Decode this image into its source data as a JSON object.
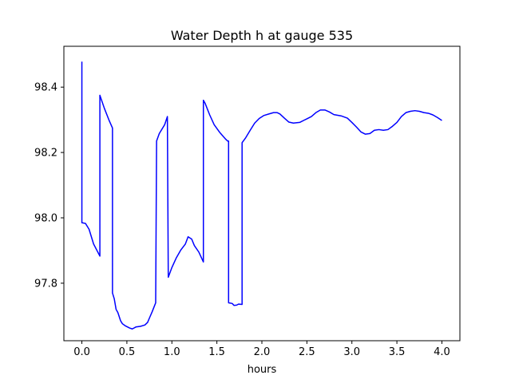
{
  "chart_data": {
    "type": "line",
    "title": "Water Depth h at gauge 535",
    "xlabel": "hours",
    "ylabel": "",
    "xlim": [
      -0.2,
      4.2
    ],
    "ylim": [
      97.624,
      98.525
    ],
    "xticks": [
      0.0,
      0.5,
      1.0,
      1.5,
      2.0,
      2.5,
      3.0,
      3.5,
      4.0
    ],
    "xtick_labels": [
      "0.0",
      "0.5",
      "1.0",
      "1.5",
      "2.0",
      "2.5",
      "3.0",
      "3.5",
      "4.0"
    ],
    "yticks": [
      97.8,
      98.0,
      98.2,
      98.4
    ],
    "ytick_labels": [
      "97.8",
      "98.0",
      "98.2",
      "98.4"
    ],
    "grid": false,
    "series": [
      {
        "color": "#0000ff",
        "x": [
          0.0,
          0.0,
          0.04,
          0.08,
          0.13,
          0.2,
          0.2,
          0.25,
          0.3,
          0.34,
          0.34,
          0.36,
          0.38,
          0.4,
          0.43,
          0.45,
          0.48,
          0.53,
          0.56,
          0.6,
          0.65,
          0.7,
          0.73,
          0.75,
          0.78,
          0.82,
          0.83,
          0.83,
          0.86,
          0.92,
          0.95,
          0.96,
          0.96,
          1.0,
          1.05,
          1.1,
          1.15,
          1.18,
          1.22,
          1.25,
          1.3,
          1.35,
          1.35,
          1.37,
          1.42,
          1.47,
          1.53,
          1.6,
          1.62,
          1.63,
          1.63,
          1.67,
          1.69,
          1.72,
          1.74,
          1.78,
          1.78,
          1.82,
          1.87,
          1.92,
          1.97,
          2.02,
          2.08,
          2.13,
          2.17,
          2.2,
          2.25,
          2.3,
          2.35,
          2.42,
          2.5,
          2.55,
          2.6,
          2.65,
          2.7,
          2.75,
          2.8,
          2.88,
          2.95,
          3.0,
          3.05,
          3.1,
          3.15,
          3.2,
          3.25,
          3.3,
          3.35,
          3.4,
          3.45,
          3.5,
          3.55,
          3.6,
          3.65,
          3.7,
          3.75,
          3.8,
          3.85,
          3.9,
          3.95,
          4.0
        ],
        "values": [
          98.478,
          97.985,
          97.983,
          97.965,
          97.92,
          97.883,
          98.375,
          98.335,
          98.3,
          98.275,
          97.77,
          97.752,
          97.72,
          97.71,
          97.685,
          97.676,
          97.67,
          97.663,
          97.66,
          97.666,
          97.668,
          97.672,
          97.68,
          97.693,
          97.712,
          97.74,
          98.235,
          98.235,
          98.258,
          98.285,
          98.31,
          97.818,
          97.818,
          97.848,
          97.878,
          97.902,
          97.92,
          97.942,
          97.935,
          97.915,
          97.895,
          97.865,
          98.36,
          98.35,
          98.315,
          98.285,
          98.262,
          98.24,
          98.235,
          98.235,
          97.74,
          97.738,
          97.732,
          97.733,
          97.736,
          97.735,
          98.23,
          98.245,
          98.268,
          98.29,
          98.304,
          98.313,
          98.318,
          98.322,
          98.322,
          98.318,
          98.305,
          98.293,
          98.29,
          98.292,
          98.303,
          98.31,
          98.322,
          98.33,
          98.33,
          98.324,
          98.316,
          98.312,
          98.305,
          98.292,
          98.278,
          98.263,
          98.256,
          98.258,
          98.268,
          98.27,
          98.268,
          98.27,
          98.28,
          98.292,
          98.31,
          98.322,
          98.326,
          98.328,
          98.326,
          98.322,
          98.32,
          98.315,
          98.307,
          98.298
        ]
      }
    ]
  }
}
